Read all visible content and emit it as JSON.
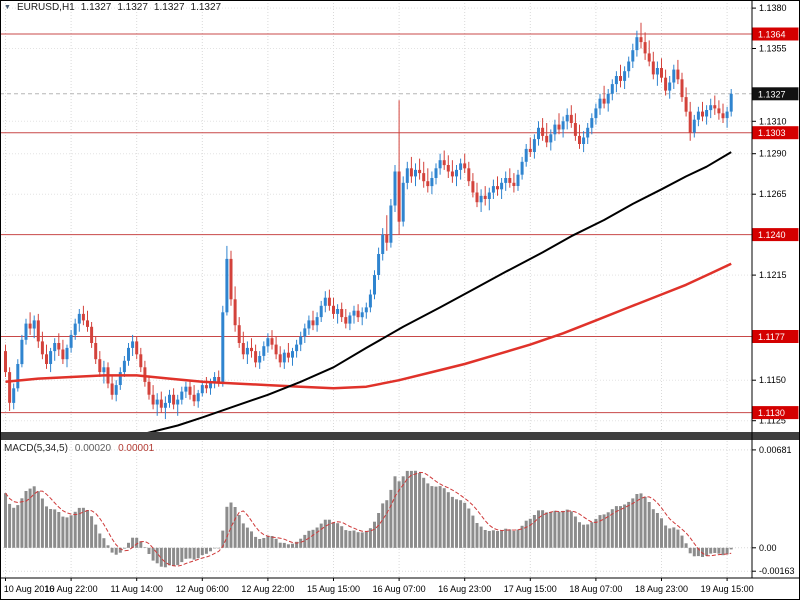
{
  "header": {
    "symbol_timeframe": "EURUSD,H1",
    "quotes": [
      "1.1327",
      "1.1327",
      "1.1327",
      "1.1327"
    ]
  },
  "macd": {
    "label": "MACD(5,34,5)",
    "main_value": "0.00020",
    "signal_value": "0.00001"
  },
  "chart_data": {
    "type": "candlestick",
    "title": "EURUSD,H1",
    "symbol": "EURUSD",
    "timeframe": "H1",
    "bars": 178,
    "colors": {
      "background": "#ffffff",
      "up": "#2f84cf",
      "down": "#d3423b",
      "grid": "#d9d9d9",
      "level_line": "#c84848",
      "badge_bg": "#d40000",
      "current_badge_bg": "#111111",
      "ma_black": "#000000",
      "ma_red": "#e0322a",
      "histogram": "#8c8c8c",
      "signal": "#cf3a3a",
      "separator": "#3f3f3f"
    },
    "price_scale": {
      "top": 1.1385,
      "bottom": 1.1118
    },
    "price_ticks": [
      {
        "label": "1.1380",
        "price": 1.138
      },
      {
        "label": "1.1355",
        "price": 1.1355
      },
      {
        "label": "1.1310",
        "price": 1.131
      },
      {
        "label": "1.1290",
        "price": 1.129
      },
      {
        "label": "1.1265",
        "price": 1.1265
      },
      {
        "label": "1.1215",
        "price": 1.1215
      },
      {
        "label": "1.1150",
        "price": 1.115
      },
      {
        "label": "1.1125",
        "price": 1.1125
      }
    ],
    "levels": [
      {
        "label": "1.1364",
        "price": 1.1364
      },
      {
        "label": "1.1303",
        "price": 1.1303
      },
      {
        "label": "1.1240",
        "price": 1.124
      },
      {
        "label": "1.1177",
        "price": 1.1177
      },
      {
        "label": "1.1130",
        "price": 1.113
      }
    ],
    "current_price": {
      "label": "1.1327",
      "price": 1.1327
    },
    "time_labels": [
      {
        "text": "10 Aug 2016",
        "bar": 0
      },
      {
        "text": "10 Aug 22:00",
        "bar": 16
      },
      {
        "text": "11 Aug 14:00",
        "bar": 32
      },
      {
        "text": "12 Aug 06:00",
        "bar": 48
      },
      {
        "text": "12 Aug 22:00",
        "bar": 64
      },
      {
        "text": "15 Aug 15:00",
        "bar": 80
      },
      {
        "text": "16 Aug 07:00",
        "bar": 96
      },
      {
        "text": "16 Aug 23:00",
        "bar": 112
      },
      {
        "text": "17 Aug 15:00",
        "bar": 128
      },
      {
        "text": "18 Aug 07:00",
        "bar": 144
      },
      {
        "text": "18 Aug 23:00",
        "bar": 160
      },
      {
        "text": "19 Aug 15:00",
        "bar": 176
      }
    ],
    "macd_params": {
      "fast": 5,
      "slow": 34,
      "signal": 5
    },
    "macd_init": {
      "ema_fast": 1.1155,
      "ema_slow": 1.1117
    },
    "macd_scale": {
      "top": 0.0075,
      "bottom": -0.0021
    },
    "macd_axis_labels": [
      {
        "text": "0.00681",
        "value": 0.00681
      },
      {
        "text": "0.00",
        "value": 0
      },
      {
        "text": "-0.00163",
        "value": -0.00163
      }
    ],
    "ma_black": [
      [
        34,
        1.1117
      ],
      [
        42,
        1.1122
      ],
      [
        48,
        1.1127
      ],
      [
        56,
        1.1134
      ],
      [
        64,
        1.1141
      ],
      [
        72,
        1.1149
      ],
      [
        80,
        1.1158
      ],
      [
        88,
        1.117
      ],
      [
        97,
        1.1183
      ],
      [
        106,
        1.1195
      ],
      [
        114,
        1.1206
      ],
      [
        122,
        1.1217
      ],
      [
        131,
        1.1229
      ],
      [
        138,
        1.1239
      ],
      [
        146,
        1.1249
      ],
      [
        153,
        1.1259
      ],
      [
        160,
        1.1268
      ],
      [
        166,
        1.1276
      ],
      [
        171,
        1.1282
      ],
      [
        177,
        1.1291
      ]
    ],
    "ma_red": [
      [
        0,
        1.1149
      ],
      [
        8,
        1.1151
      ],
      [
        16,
        1.1152
      ],
      [
        24,
        1.1153
      ],
      [
        32,
        1.1153
      ],
      [
        40,
        1.1151
      ],
      [
        48,
        1.1149
      ],
      [
        56,
        1.1148
      ],
      [
        64,
        1.1147
      ],
      [
        72,
        1.1146
      ],
      [
        80,
        1.1145
      ],
      [
        88,
        1.1146
      ],
      [
        96,
        1.115
      ],
      [
        104,
        1.1155
      ],
      [
        112,
        1.116
      ],
      [
        120,
        1.1166
      ],
      [
        128,
        1.1172
      ],
      [
        136,
        1.1179
      ],
      [
        144,
        1.1187
      ],
      [
        152,
        1.1195
      ],
      [
        160,
        1.1203
      ],
      [
        166,
        1.1209
      ],
      [
        172,
        1.1216
      ],
      [
        177,
        1.1222
      ]
    ],
    "candles": [
      [
        1.1168,
        1.1172,
        1.1152,
        1.1155
      ],
      [
        1.1155,
        1.1158,
        1.1131,
        1.1136
      ],
      [
        1.1136,
        1.1148,
        1.1132,
        1.1145
      ],
      [
        1.1145,
        1.1163,
        1.1143,
        1.116
      ],
      [
        1.116,
        1.1178,
        1.1158,
        1.1175
      ],
      [
        1.1175,
        1.1188,
        1.1172,
        1.1185
      ],
      [
        1.1185,
        1.1192,
        1.1178,
        1.1182
      ],
      [
        1.1182,
        1.119,
        1.1176,
        1.1187
      ],
      [
        1.1187,
        1.1191,
        1.117,
        1.1174
      ],
      [
        1.1174,
        1.118,
        1.1163,
        1.1166
      ],
      [
        1.1166,
        1.1172,
        1.1157,
        1.116
      ],
      [
        1.116,
        1.117,
        1.1155,
        1.1168
      ],
      [
        1.1168,
        1.1176,
        1.1162,
        1.1173
      ],
      [
        1.1173,
        1.1179,
        1.1165,
        1.1169
      ],
      [
        1.1169,
        1.1175,
        1.116,
        1.1163
      ],
      [
        1.1163,
        1.1172,
        1.1158,
        1.117
      ],
      [
        1.117,
        1.1181,
        1.1167,
        1.1178
      ],
      [
        1.1178,
        1.1188,
        1.1175,
        1.1185
      ],
      [
        1.1185,
        1.1194,
        1.118,
        1.1191
      ],
      [
        1.1191,
        1.1196,
        1.1184,
        1.1187
      ],
      [
        1.1187,
        1.1193,
        1.118,
        1.1183
      ],
      [
        1.1183,
        1.1186,
        1.117,
        1.1173
      ],
      [
        1.1173,
        1.1177,
        1.116,
        1.1163
      ],
      [
        1.1163,
        1.1168,
        1.1152,
        1.1155
      ],
      [
        1.1155,
        1.1162,
        1.1148,
        1.1158
      ],
      [
        1.1158,
        1.1161,
        1.1145,
        1.1148
      ],
      [
        1.1148,
        1.1153,
        1.1138,
        1.1141
      ],
      [
        1.1141,
        1.115,
        1.1137,
        1.1147
      ],
      [
        1.1147,
        1.1158,
        1.1144,
        1.1155
      ],
      [
        1.1155,
        1.1165,
        1.1152,
        1.1162
      ],
      [
        1.1162,
        1.1173,
        1.1159,
        1.117
      ],
      [
        1.117,
        1.1178,
        1.1165,
        1.1174
      ],
      [
        1.1174,
        1.1177,
        1.1163,
        1.1166
      ],
      [
        1.1166,
        1.117,
        1.1155,
        1.1158
      ],
      [
        1.1158,
        1.1162,
        1.1146,
        1.1149
      ],
      [
        1.1149,
        1.1153,
        1.1138,
        1.1141
      ],
      [
        1.1141,
        1.1147,
        1.1132,
        1.1135
      ],
      [
        1.1135,
        1.1142,
        1.1128,
        1.1138
      ],
      [
        1.1138,
        1.1143,
        1.113,
        1.1133
      ],
      [
        1.1133,
        1.114,
        1.1126,
        1.1136
      ],
      [
        1.1136,
        1.1144,
        1.1133,
        1.1141
      ],
      [
        1.1141,
        1.1145,
        1.1132,
        1.1135
      ],
      [
        1.1135,
        1.1141,
        1.1128,
        1.1138
      ],
      [
        1.1138,
        1.1146,
        1.1135,
        1.1143
      ],
      [
        1.1143,
        1.1149,
        1.1139,
        1.1146
      ],
      [
        1.1146,
        1.115,
        1.1138,
        1.1141
      ],
      [
        1.1141,
        1.1147,
        1.1134,
        1.1137
      ],
      [
        1.1137,
        1.1144,
        1.1133,
        1.1142
      ],
      [
        1.1142,
        1.115,
        1.114,
        1.1147
      ],
      [
        1.1147,
        1.1152,
        1.1142,
        1.1145
      ],
      [
        1.1145,
        1.1151,
        1.1141,
        1.1149
      ],
      [
        1.1149,
        1.1155,
        1.1145,
        1.1152
      ],
      [
        1.1152,
        1.1156,
        1.1146,
        1.1148
      ],
      [
        1.1148,
        1.1196,
        1.1146,
        1.1192
      ],
      [
        1.1192,
        1.1233,
        1.119,
        1.1225
      ],
      [
        1.1225,
        1.123,
        1.1196,
        1.12
      ],
      [
        1.12,
        1.1208,
        1.118,
        1.1184
      ],
      [
        1.1184,
        1.1189,
        1.117,
        1.1173
      ],
      [
        1.1173,
        1.118,
        1.1163,
        1.1166
      ],
      [
        1.1166,
        1.1174,
        1.116,
        1.117
      ],
      [
        1.117,
        1.1176,
        1.1164,
        1.1168
      ],
      [
        1.1168,
        1.1172,
        1.1158,
        1.1161
      ],
      [
        1.1161,
        1.1168,
        1.1157,
        1.1165
      ],
      [
        1.1165,
        1.1174,
        1.1162,
        1.1171
      ],
      [
        1.1171,
        1.1179,
        1.1167,
        1.1176
      ],
      [
        1.1176,
        1.1181,
        1.1169,
        1.1172
      ],
      [
        1.1172,
        1.1177,
        1.1163,
        1.1166
      ],
      [
        1.1166,
        1.1171,
        1.1158,
        1.1161
      ],
      [
        1.1161,
        1.1169,
        1.1157,
        1.1167
      ],
      [
        1.1167,
        1.1173,
        1.1161,
        1.1164
      ],
      [
        1.1164,
        1.117,
        1.1159,
        1.1168
      ],
      [
        1.1168,
        1.1175,
        1.1164,
        1.1172
      ],
      [
        1.1172,
        1.118,
        1.1168,
        1.1177
      ],
      [
        1.1177,
        1.1185,
        1.1173,
        1.1182
      ],
      [
        1.1182,
        1.119,
        1.1178,
        1.1187
      ],
      [
        1.1187,
        1.1193,
        1.1181,
        1.1184
      ],
      [
        1.1184,
        1.1192,
        1.118,
        1.1189
      ],
      [
        1.1189,
        1.1199,
        1.1186,
        1.1196
      ],
      [
        1.1196,
        1.1205,
        1.1192,
        1.1201
      ],
      [
        1.1201,
        1.1206,
        1.1193,
        1.1196
      ],
      [
        1.1196,
        1.1201,
        1.1188,
        1.1191
      ],
      [
        1.1191,
        1.1197,
        1.1185,
        1.1194
      ],
      [
        1.1194,
        1.1198,
        1.1186,
        1.1189
      ],
      [
        1.1189,
        1.1194,
        1.1182,
        1.1185
      ],
      [
        1.1185,
        1.1192,
        1.1181,
        1.119
      ],
      [
        1.119,
        1.1196,
        1.1185,
        1.1193
      ],
      [
        1.1193,
        1.1197,
        1.1186,
        1.1189
      ],
      [
        1.1189,
        1.1195,
        1.1184,
        1.1192
      ],
      [
        1.1192,
        1.1198,
        1.1188,
        1.1195
      ],
      [
        1.1195,
        1.1206,
        1.1192,
        1.1203
      ],
      [
        1.1203,
        1.1218,
        1.12,
        1.1215
      ],
      [
        1.1215,
        1.1232,
        1.1212,
        1.1228
      ],
      [
        1.1228,
        1.1244,
        1.1224,
        1.124
      ],
      [
        1.124,
        1.1252,
        1.123,
        1.1235
      ],
      [
        1.1235,
        1.1262,
        1.1232,
        1.1258
      ],
      [
        1.1258,
        1.1283,
        1.1254,
        1.1279
      ],
      [
        1.1279,
        1.1323,
        1.124,
        1.1248
      ],
      [
        1.1248,
        1.1276,
        1.1245,
        1.1272
      ],
      [
        1.1272,
        1.1285,
        1.1268,
        1.1281
      ],
      [
        1.1281,
        1.1288,
        1.1272,
        1.1276
      ],
      [
        1.1276,
        1.1284,
        1.127,
        1.128
      ],
      [
        1.128,
        1.1287,
        1.1274,
        1.1278
      ],
      [
        1.1278,
        1.1285,
        1.1269,
        1.1273
      ],
      [
        1.1273,
        1.1281,
        1.1266,
        1.127
      ],
      [
        1.127,
        1.1279,
        1.1265,
        1.1275
      ],
      [
        1.1275,
        1.1284,
        1.1271,
        1.1281
      ],
      [
        1.1281,
        1.129,
        1.1277,
        1.1286
      ],
      [
        1.1286,
        1.1292,
        1.128,
        1.1283
      ],
      [
        1.1283,
        1.1289,
        1.1275,
        1.1279
      ],
      [
        1.1279,
        1.1286,
        1.1272,
        1.1276
      ],
      [
        1.1276,
        1.1283,
        1.127,
        1.128
      ],
      [
        1.128,
        1.1287,
        1.1274,
        1.1284
      ],
      [
        1.1284,
        1.129,
        1.1278,
        1.1281
      ],
      [
        1.1281,
        1.1285,
        1.127,
        1.1273
      ],
      [
        1.1273,
        1.1278,
        1.1263,
        1.1266
      ],
      [
        1.1266,
        1.1272,
        1.1257,
        1.126
      ],
      [
        1.126,
        1.1268,
        1.1254,
        1.1264
      ],
      [
        1.1264,
        1.127,
        1.1258,
        1.1262
      ],
      [
        1.1262,
        1.1269,
        1.1255,
        1.1266
      ],
      [
        1.1266,
        1.1274,
        1.1262,
        1.127
      ],
      [
        1.127,
        1.1276,
        1.1264,
        1.1268
      ],
      [
        1.1268,
        1.1275,
        1.1262,
        1.1272
      ],
      [
        1.1272,
        1.1279,
        1.1267,
        1.1275
      ],
      [
        1.1275,
        1.1281,
        1.1269,
        1.1272
      ],
      [
        1.1272,
        1.1278,
        1.1266,
        1.127
      ],
      [
        1.127,
        1.128,
        1.1267,
        1.1277
      ],
      [
        1.1277,
        1.1288,
        1.1274,
        1.1285
      ],
      [
        1.1285,
        1.1296,
        1.1282,
        1.1293
      ],
      [
        1.1293,
        1.13,
        1.1288,
        1.1291
      ],
      [
        1.1291,
        1.1302,
        1.1287,
        1.1299
      ],
      [
        1.1299,
        1.131,
        1.1295,
        1.1306
      ],
      [
        1.1306,
        1.1312,
        1.1298,
        1.1301
      ],
      [
        1.1301,
        1.1309,
        1.1294,
        1.1297
      ],
      [
        1.1297,
        1.1305,
        1.1292,
        1.1302
      ],
      [
        1.1302,
        1.1311,
        1.1298,
        1.1308
      ],
      [
        1.1308,
        1.1315,
        1.1302,
        1.1305
      ],
      [
        1.1305,
        1.1313,
        1.13,
        1.131
      ],
      [
        1.131,
        1.1318,
        1.1305,
        1.1314
      ],
      [
        1.1314,
        1.132,
        1.1306,
        1.1309
      ],
      [
        1.1309,
        1.1315,
        1.1298,
        1.1301
      ],
      [
        1.1301,
        1.1308,
        1.1293,
        1.1296
      ],
      [
        1.1296,
        1.1304,
        1.1291,
        1.13
      ],
      [
        1.13,
        1.1309,
        1.1296,
        1.1306
      ],
      [
        1.1306,
        1.1315,
        1.1302,
        1.1312
      ],
      [
        1.1312,
        1.1321,
        1.1308,
        1.1318
      ],
      [
        1.1318,
        1.1327,
        1.1314,
        1.1324
      ],
      [
        1.1324,
        1.1332,
        1.1318,
        1.1321
      ],
      [
        1.1321,
        1.133,
        1.1316,
        1.1327
      ],
      [
        1.1327,
        1.1336,
        1.1323,
        1.1333
      ],
      [
        1.1333,
        1.1341,
        1.1328,
        1.1338
      ],
      [
        1.1338,
        1.1345,
        1.1331,
        1.1335
      ],
      [
        1.1335,
        1.1344,
        1.133,
        1.1341
      ],
      [
        1.1341,
        1.135,
        1.1337,
        1.1347
      ],
      [
        1.1347,
        1.1358,
        1.1343,
        1.1354
      ],
      [
        1.1354,
        1.1366,
        1.135,
        1.1362
      ],
      [
        1.1362,
        1.1371,
        1.1355,
        1.1359
      ],
      [
        1.1359,
        1.1365,
        1.1348,
        1.1352
      ],
      [
        1.1352,
        1.136,
        1.1344,
        1.1347
      ],
      [
        1.1347,
        1.1353,
        1.1336,
        1.1339
      ],
      [
        1.1339,
        1.1347,
        1.1332,
        1.1343
      ],
      [
        1.1343,
        1.1349,
        1.1334,
        1.1337
      ],
      [
        1.1337,
        1.1342,
        1.1326,
        1.1329
      ],
      [
        1.1329,
        1.1338,
        1.1324,
        1.1334
      ],
      [
        1.1334,
        1.1345,
        1.133,
        1.1342
      ],
      [
        1.1342,
        1.1348,
        1.1333,
        1.1336
      ],
      [
        1.1336,
        1.134,
        1.1322,
        1.1325
      ],
      [
        1.1325,
        1.1331,
        1.1313,
        1.1316
      ],
      [
        1.1316,
        1.1322,
        1.1298,
        1.1303
      ],
      [
        1.1303,
        1.1314,
        1.13,
        1.1311
      ],
      [
        1.1311,
        1.1319,
        1.1307,
        1.1316
      ],
      [
        1.1316,
        1.1322,
        1.131,
        1.1313
      ],
      [
        1.1313,
        1.132,
        1.1308,
        1.1317
      ],
      [
        1.1317,
        1.1324,
        1.1312,
        1.132
      ],
      [
        1.132,
        1.1326,
        1.1314,
        1.1318
      ],
      [
        1.1318,
        1.1323,
        1.1311,
        1.1315
      ],
      [
        1.1315,
        1.1321,
        1.1309,
        1.1312
      ],
      [
        1.1312,
        1.1319,
        1.1306,
        1.1316
      ],
      [
        1.1316,
        1.133,
        1.1313,
        1.1327
      ]
    ]
  }
}
